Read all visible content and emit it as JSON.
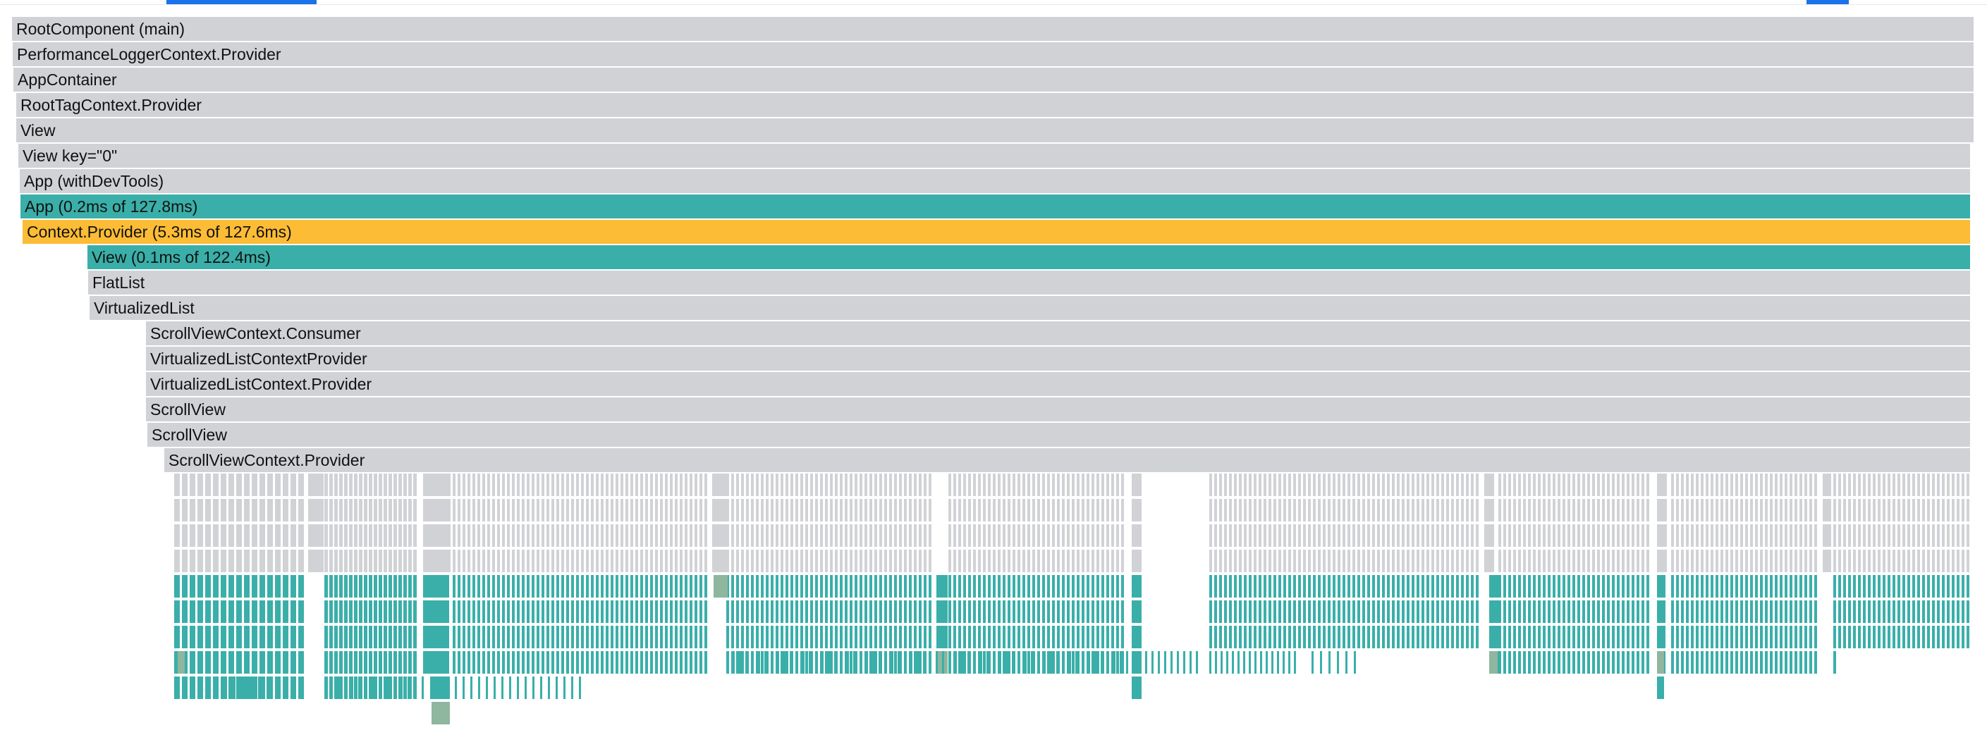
{
  "colors": {
    "not_rendered": "#d1d2d6",
    "rendered": "#3aafa9",
    "slow": "#fdbc35",
    "memo": "#8fb69f",
    "selection": "#1a73e8"
  },
  "flamegraph": {
    "rows": [
      {
        "label": "RootComponent (main)",
        "kind": "gray"
      },
      {
        "label": "PerformanceLoggerContext.Provider",
        "kind": "gray"
      },
      {
        "label": "AppContainer",
        "kind": "gray"
      },
      {
        "label": "RootTagContext.Provider",
        "kind": "gray"
      },
      {
        "label": "View",
        "kind": "gray"
      },
      {
        "label": "View key=\"0\"",
        "kind": "gray"
      },
      {
        "label": "App (withDevTools)",
        "kind": "gray"
      },
      {
        "label": "App (0.2ms of 127.8ms)",
        "kind": "teal"
      },
      {
        "label": "Context.Provider (5.3ms of 127.6ms)",
        "kind": "yellow"
      },
      {
        "label": "View (0.1ms of 122.4ms)",
        "kind": "teal"
      },
      {
        "label": "FlatList",
        "kind": "gray"
      },
      {
        "label": "VirtualizedList",
        "kind": "gray"
      },
      {
        "label": "ScrollViewContext.Consumer",
        "kind": "gray"
      },
      {
        "label": "VirtualizedListContextProvider",
        "kind": "gray"
      },
      {
        "label": "VirtualizedListContext.Provider",
        "kind": "gray"
      },
      {
        "label": "ScrollView",
        "kind": "gray"
      },
      {
        "label": "ScrollView",
        "kind": "gray"
      },
      {
        "label": "ScrollViewContext.Provider",
        "kind": "gray"
      }
    ]
  }
}
